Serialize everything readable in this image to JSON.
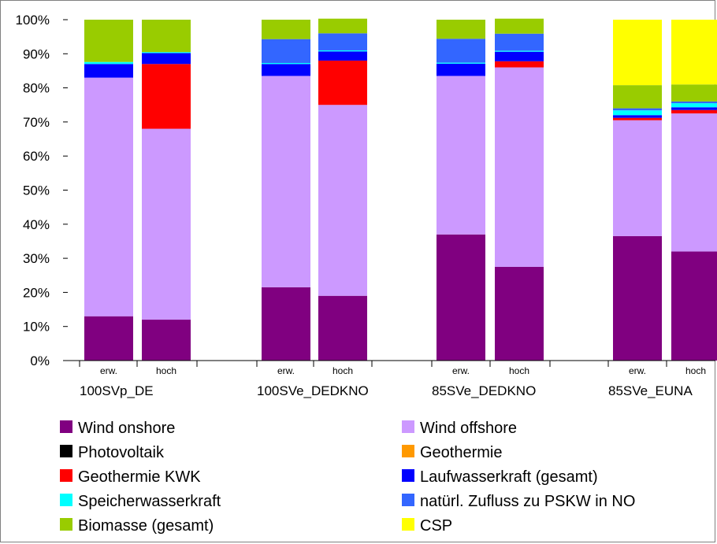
{
  "chart_data": {
    "type": "bar",
    "stacked": true,
    "normalized": true,
    "groups": [
      "100SVp_DE",
      "100SVe_DEDKNO",
      "85SVe_DEDKNO",
      "85SVe_EUNA"
    ],
    "sub_categories": [
      "erw.",
      "hoch"
    ],
    "ylim": [
      0,
      100
    ],
    "yticks": [
      "0%",
      "10%",
      "20%",
      "30%",
      "40%",
      "50%",
      "60%",
      "70%",
      "80%",
      "90%",
      "100%"
    ],
    "grid": false,
    "legend_position": "bottom",
    "series": [
      {
        "name": "Wind onshore",
        "color": "#800080",
        "values": [
          13,
          12,
          21.5,
          19,
          37,
          27.5,
          36.5,
          32
        ]
      },
      {
        "name": "Wind offshore",
        "color": "#CC99FF",
        "values": [
          70,
          56,
          62,
          56,
          46.5,
          58.5,
          34,
          40.5
        ]
      },
      {
        "name": "Photovoltaik",
        "color": "#000000",
        "values": [
          0,
          0,
          0,
          0,
          0,
          0,
          0,
          0
        ]
      },
      {
        "name": "Geothermie",
        "color": "#FF9900",
        "values": [
          0,
          0,
          0,
          0,
          0,
          0,
          0,
          0
        ]
      },
      {
        "name": "Geothermie KWK",
        "color": "#FF0000",
        "values": [
          0,
          19,
          0,
          13,
          0,
          1.8,
          0.7,
          1
        ]
      },
      {
        "name": "Laufwasserkraft (gesamt)",
        "color": "#0000FF",
        "values": [
          4,
          3.2,
          3.5,
          2.7,
          3.6,
          2.8,
          0.8,
          0.8
        ]
      },
      {
        "name": "Speicherwasserkraft",
        "color": "#00FFFF",
        "values": [
          0.6,
          0.3,
          0.3,
          0.3,
          0.3,
          0.3,
          1.4,
          1.2
        ]
      },
      {
        "name": "natürl. Zufluss zu PSKW in NO",
        "color": "#3366FF",
        "values": [
          0,
          0,
          7,
          5,
          7,
          5,
          0.6,
          0.5
        ]
      },
      {
        "name": "Biomasse (gesamt)",
        "color": "#99CC00",
        "values": [
          12.4,
          9.5,
          5.7,
          4.3,
          5.6,
          4.4,
          6.8,
          5
        ]
      },
      {
        "name": "CSP",
        "color": "#FFFF00",
        "values": [
          0,
          0,
          0,
          0,
          0,
          0,
          19.2,
          19
        ]
      }
    ]
  }
}
